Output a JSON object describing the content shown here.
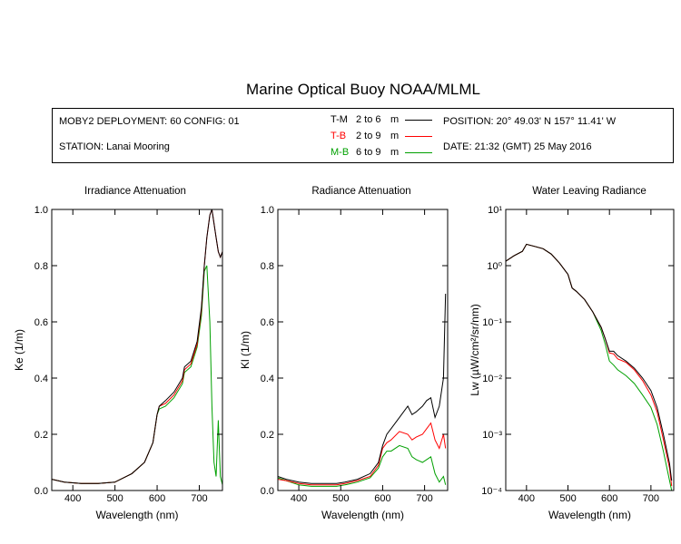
{
  "page_title": "Marine Optical Buoy NOAA/MLML",
  "info": {
    "deployment": "MOBY2 DEPLOYMENT: 60 CONFIG: 01",
    "station": "STATION: Lanai Mooring",
    "legend": [
      {
        "code": "T-M",
        "range": "2 to 6",
        "unit": "m",
        "color": "#000000"
      },
      {
        "code": "T-B",
        "range": "2 to 9",
        "unit": "m",
        "color": "#ff0000"
      },
      {
        "code": "M-B",
        "range": "6 to 9",
        "unit": "m",
        "color": "#00a000"
      }
    ],
    "position": "POSITION: 20° 49.03' N   157° 11.41' W",
    "date": "DATE: 21:32 (GMT) 25 May 2016"
  },
  "colors": {
    "T-M": "#000000",
    "T-B": "#ff0000",
    "M-B": "#00a000"
  },
  "chart_data": [
    {
      "type": "line",
      "title": "Irradiance Attenuation",
      "xlabel": "Wavelength (nm)",
      "ylabel": "Ke  (1/m)",
      "xlim": [
        350,
        755
      ],
      "ylim": [
        0,
        1.0
      ],
      "xticks": [
        "400",
        "500",
        "600",
        "700"
      ],
      "yticks": [
        "0.0",
        "0.2",
        "0.4",
        "0.6",
        "0.8",
        "1.0"
      ],
      "x": [
        350,
        380,
        420,
        460,
        500,
        540,
        570,
        590,
        600,
        605,
        620,
        640,
        660,
        665,
        680,
        695,
        705,
        712,
        718,
        725,
        730,
        735,
        740,
        745,
        750,
        755
      ],
      "series": [
        {
          "name": "T-M",
          "values": [
            0.04,
            0.03,
            0.025,
            0.025,
            0.03,
            0.06,
            0.1,
            0.17,
            0.27,
            0.3,
            0.32,
            0.35,
            0.4,
            0.44,
            0.46,
            0.53,
            0.65,
            0.8,
            0.9,
            0.98,
            1.0,
            0.95,
            0.9,
            0.85,
            0.83,
            0.85
          ]
        },
        {
          "name": "T-B",
          "values": [
            0.04,
            0.03,
            0.025,
            0.025,
            0.03,
            0.06,
            0.1,
            0.17,
            0.27,
            0.3,
            0.31,
            0.34,
            0.39,
            0.43,
            0.45,
            0.52,
            0.64,
            0.8,
            0.9,
            0.98,
            1.0,
            0.95,
            0.9,
            0.85,
            0.83,
            0.85
          ]
        },
        {
          "name": "M-B",
          "values": [
            0.04,
            0.03,
            0.025,
            0.025,
            0.03,
            0.06,
            0.1,
            0.17,
            0.27,
            0.29,
            0.3,
            0.33,
            0.38,
            0.42,
            0.44,
            0.51,
            0.62,
            0.78,
            0.8,
            0.6,
            0.3,
            0.1,
            0.05,
            0.25,
            0.05,
            0.02
          ]
        }
      ]
    },
    {
      "type": "line",
      "title": "Radiance Attenuation",
      "xlabel": "Wavelength (nm)",
      "ylabel": "Kl  (1/m)",
      "xlim": [
        350,
        755
      ],
      "ylim": [
        0,
        1.0
      ],
      "xticks": [
        "400",
        "500",
        "600",
        "700"
      ],
      "yticks": [
        "0.0",
        "0.2",
        "0.4",
        "0.6",
        "0.8",
        "1.0"
      ],
      "x": [
        350,
        370,
        400,
        430,
        460,
        490,
        510,
        540,
        570,
        590,
        600,
        610,
        620,
        640,
        660,
        670,
        680,
        695,
        705,
        715,
        725,
        735,
        745,
        750
      ],
      "series": [
        {
          "name": "T-M",
          "values": [
            0.05,
            0.04,
            0.03,
            0.025,
            0.025,
            0.025,
            0.03,
            0.04,
            0.06,
            0.1,
            0.16,
            0.2,
            0.22,
            0.26,
            0.3,
            0.27,
            0.28,
            0.3,
            0.32,
            0.33,
            0.26,
            0.3,
            0.4,
            0.7
          ]
        },
        {
          "name": "T-B",
          "values": [
            0.04,
            0.035,
            0.025,
            0.02,
            0.02,
            0.02,
            0.025,
            0.035,
            0.05,
            0.09,
            0.15,
            0.17,
            0.18,
            0.21,
            0.2,
            0.18,
            0.19,
            0.2,
            0.22,
            0.24,
            0.18,
            0.15,
            0.2,
            0.15
          ]
        },
        {
          "name": "M-B",
          "values": [
            0.045,
            0.035,
            0.02,
            0.015,
            0.015,
            0.015,
            0.02,
            0.03,
            0.045,
            0.08,
            0.12,
            0.14,
            0.14,
            0.16,
            0.15,
            0.12,
            0.11,
            0.1,
            0.11,
            0.12,
            0.06,
            0.03,
            0.05,
            0.02
          ]
        }
      ]
    },
    {
      "type": "line",
      "title": "Water Leaving Radiance",
      "xlabel": "Wavelength (nm)",
      "ylabel": "Lw  (µW/cm²/sr/nm)",
      "xscale": "linear",
      "yscale": "log",
      "xlim": [
        350,
        755
      ],
      "ylim": [
        0.0001,
        10
      ],
      "xticks": [
        "400",
        "500",
        "600",
        "700"
      ],
      "ytick_labels": [
        "10⁻⁴",
        "10⁻³",
        "10⁻²",
        "10⁻¹",
        "10⁰",
        "10¹"
      ],
      "x": [
        350,
        370,
        390,
        400,
        420,
        440,
        460,
        480,
        500,
        510,
        520,
        540,
        560,
        580,
        590,
        600,
        610,
        620,
        640,
        660,
        680,
        700,
        715,
        730,
        745,
        750
      ],
      "series": [
        {
          "name": "T-M",
          "values": [
            1.2,
            1.5,
            1.8,
            2.4,
            2.2,
            2.0,
            1.6,
            1.1,
            0.7,
            0.4,
            0.35,
            0.25,
            0.15,
            0.08,
            0.05,
            0.03,
            0.03,
            0.025,
            0.02,
            0.015,
            0.01,
            0.006,
            0.003,
            0.001,
            0.0003,
            0.00015
          ]
        },
        {
          "name": "T-B",
          "values": [
            1.2,
            1.5,
            1.8,
            2.4,
            2.2,
            2.0,
            1.6,
            1.1,
            0.7,
            0.4,
            0.35,
            0.25,
            0.15,
            0.08,
            0.05,
            0.028,
            0.027,
            0.022,
            0.019,
            0.014,
            0.009,
            0.005,
            0.0025,
            0.0008,
            0.00025,
            0.00012
          ]
        },
        {
          "name": "M-B",
          "values": [
            1.2,
            1.5,
            1.8,
            2.4,
            2.2,
            2.0,
            1.6,
            1.1,
            0.7,
            0.4,
            0.35,
            0.25,
            0.15,
            0.07,
            0.04,
            0.02,
            0.017,
            0.014,
            0.011,
            0.008,
            0.005,
            0.003,
            0.0015,
            0.0005,
            0.00015,
            0.0001
          ]
        }
      ]
    }
  ]
}
